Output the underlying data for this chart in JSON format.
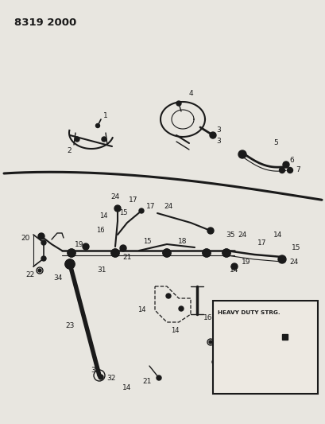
{
  "title": "8319 2000",
  "bg_color": "#e8e6e0",
  "line_color": "#1a1a1a",
  "text_color": "#1a1a1a",
  "fig_width": 4.1,
  "fig_height": 5.33,
  "dpi": 100
}
